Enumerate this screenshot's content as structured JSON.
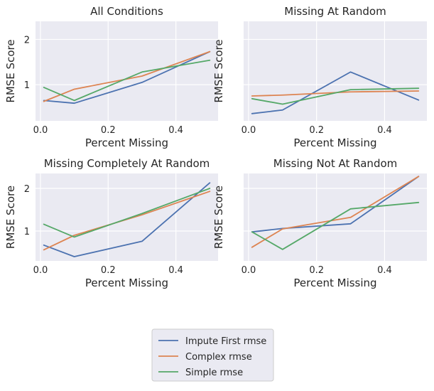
{
  "chart_data": [
    {
      "type": "line",
      "title": "All Conditions",
      "xlabel": "Percent Missing",
      "ylabel": "RMSE Score",
      "xlim": [
        -0.0145,
        0.5245
      ],
      "ylim": [
        0.2,
        2.4
      ],
      "xticks": [
        0.0,
        0.2,
        0.4
      ],
      "xtick_labels": [
        "0.0",
        "0.2",
        "0.4"
      ],
      "yticks": [
        1,
        2
      ],
      "ytick_labels": [
        "1",
        "2"
      ],
      "show_ytick_labels": true,
      "grid": true,
      "series": [
        {
          "name": "Impute First rmse",
          "color": "#4c72b0",
          "x": [
            0.01,
            0.1,
            0.3,
            0.5
          ],
          "values": [
            0.65,
            0.59,
            1.05,
            1.73
          ]
        },
        {
          "name": "Complex rmse",
          "color": "#dd8452",
          "x": [
            0.01,
            0.1,
            0.3,
            0.5
          ],
          "values": [
            0.63,
            0.9,
            1.19,
            1.73
          ]
        },
        {
          "name": "Simple rmse",
          "color": "#55a868",
          "x": [
            0.01,
            0.1,
            0.3,
            0.5
          ],
          "values": [
            0.94,
            0.65,
            1.28,
            1.54
          ]
        }
      ]
    },
    {
      "type": "line",
      "title": "Missing At Random",
      "xlabel": "Percent Missing",
      "ylabel": "RMSE Score",
      "xlim": [
        -0.0145,
        0.5245
      ],
      "ylim": [
        0.2,
        2.4
      ],
      "xticks": [
        0.0,
        0.2,
        0.4
      ],
      "xtick_labels": [
        "0.0",
        "0.2",
        "0.4"
      ],
      "yticks": [
        1,
        2
      ],
      "ytick_labels": [
        "1",
        "2"
      ],
      "show_ytick_labels": false,
      "grid": true,
      "series": [
        {
          "name": "Impute First rmse",
          "color": "#4c72b0",
          "x": [
            0.01,
            0.1,
            0.3,
            0.5
          ],
          "values": [
            0.36,
            0.44,
            1.28,
            0.66
          ]
        },
        {
          "name": "Complex rmse",
          "color": "#dd8452",
          "x": [
            0.01,
            0.1,
            0.3,
            0.5
          ],
          "values": [
            0.75,
            0.77,
            0.84,
            0.86
          ]
        },
        {
          "name": "Simple rmse",
          "color": "#55a868",
          "x": [
            0.01,
            0.1,
            0.3,
            0.5
          ],
          "values": [
            0.69,
            0.57,
            0.89,
            0.92
          ]
        }
      ]
    },
    {
      "type": "line",
      "title": "Missing Completely At Random",
      "xlabel": "Percent Missing",
      "ylabel": "RMSE Score",
      "xlim": [
        -0.0145,
        0.5245
      ],
      "ylim": [
        0.3,
        2.35
      ],
      "xticks": [
        0.0,
        0.2,
        0.4
      ],
      "xtick_labels": [
        "0.0",
        "0.2",
        "0.4"
      ],
      "yticks": [
        1,
        2
      ],
      "ytick_labels": [
        "1",
        "2"
      ],
      "show_ytick_labels": true,
      "grid": true,
      "series": [
        {
          "name": "Impute First rmse",
          "color": "#4c72b0",
          "x": [
            0.01,
            0.1,
            0.3,
            0.5
          ],
          "values": [
            0.67,
            0.4,
            0.76,
            2.13
          ]
        },
        {
          "name": "Complex rmse",
          "color": "#dd8452",
          "x": [
            0.01,
            0.1,
            0.3,
            0.5
          ],
          "values": [
            0.56,
            0.9,
            1.38,
            1.93
          ]
        },
        {
          "name": "Simple rmse",
          "color": "#55a868",
          "x": [
            0.01,
            0.1,
            0.3,
            0.5
          ],
          "values": [
            1.16,
            0.86,
            1.41,
            2.0
          ]
        }
      ]
    },
    {
      "type": "line",
      "title": "Missing Not At Random",
      "xlabel": "Percent Missing",
      "ylabel": "RMSE Score",
      "xlim": [
        -0.0145,
        0.5245
      ],
      "ylim": [
        0.3,
        2.35
      ],
      "xticks": [
        0.0,
        0.2,
        0.4
      ],
      "xtick_labels": [
        "0.0",
        "0.2",
        "0.4"
      ],
      "yticks": [
        1,
        2
      ],
      "ytick_labels": [
        "1",
        "2"
      ],
      "show_ytick_labels": false,
      "grid": true,
      "series": [
        {
          "name": "Impute First rmse",
          "color": "#4c72b0",
          "x": [
            0.01,
            0.1,
            0.3,
            0.5
          ],
          "values": [
            0.98,
            1.06,
            1.17,
            2.28
          ]
        },
        {
          "name": "Complex rmse",
          "color": "#dd8452",
          "x": [
            0.01,
            0.1,
            0.3,
            0.5
          ],
          "values": [
            0.62,
            1.05,
            1.32,
            2.28
          ]
        },
        {
          "name": "Simple rmse",
          "color": "#55a868",
          "x": [
            0.01,
            0.1,
            0.3,
            0.5
          ],
          "values": [
            0.98,
            0.57,
            1.52,
            1.67
          ]
        }
      ]
    }
  ],
  "legend": {
    "placement": "bottom-center",
    "entries": [
      {
        "label": "Impute First rmse",
        "color": "#4c72b0"
      },
      {
        "label": "Complex rmse",
        "color": "#dd8452"
      },
      {
        "label": "Simple rmse",
        "color": "#55a868"
      }
    ]
  },
  "style": {
    "plot_background": "#eaeaf2",
    "grid_color": "#ffffff",
    "text_color": "#262626",
    "legend_background": "#eaeaf2",
    "legend_border": "#cccccc"
  }
}
